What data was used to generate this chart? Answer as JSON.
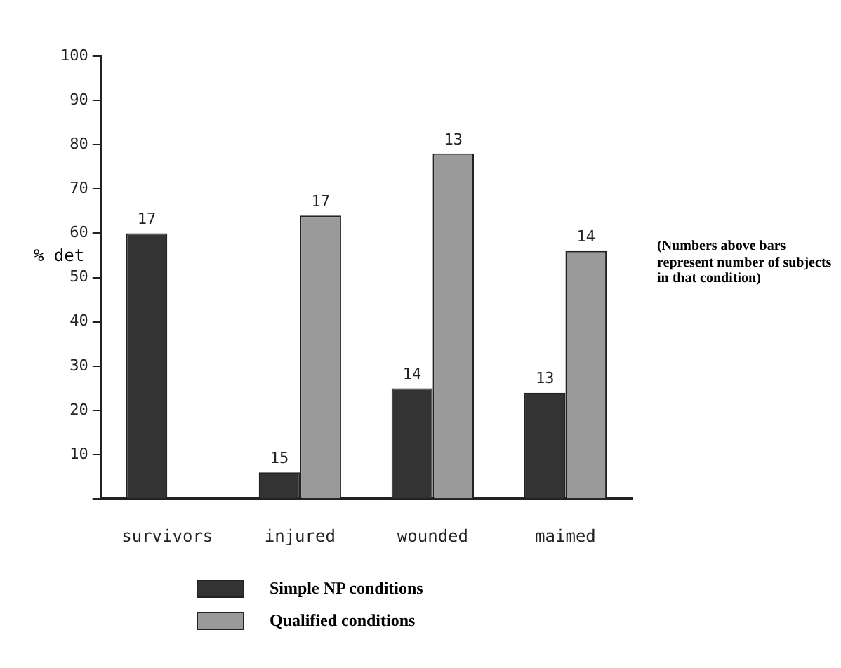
{
  "chart_data": {
    "type": "bar",
    "ylabel": "% det",
    "categories": [
      "survivors",
      "injured",
      "wounded",
      "maimed"
    ],
    "series": [
      {
        "name": "Simple NP conditions",
        "color": "#333333",
        "values": [
          60,
          6,
          25,
          24
        ]
      },
      {
        "name": "Qualified conditions",
        "color": "#9a9a9a",
        "values": [
          null,
          64,
          78,
          56
        ]
      }
    ],
    "ylim": [
      0,
      100
    ],
    "yticks": [
      {
        "value": 0,
        "label": null
      },
      10,
      20,
      30,
      40,
      50,
      60,
      70,
      80,
      90,
      100
    ],
    "grid": false,
    "legend": "bottom",
    "annotations": [
      {
        "text": "17",
        "x": "survivors",
        "y": 60
      },
      {
        "text": "15",
        "x": "injured",
        "y": 6
      },
      {
        "text": "17",
        "x": "injured",
        "y": 64
      },
      {
        "text": "14",
        "x": "wounded",
        "y": 25
      },
      {
        "text": "13",
        "x": "wounded",
        "y": 78
      },
      {
        "text": "13",
        "x": "maimed",
        "y": 24
      },
      {
        "text": "14",
        "x": "maimed",
        "y": 56
      },
      "(Numbers above bars represent number of subjects in that condition)"
    ]
  }
}
